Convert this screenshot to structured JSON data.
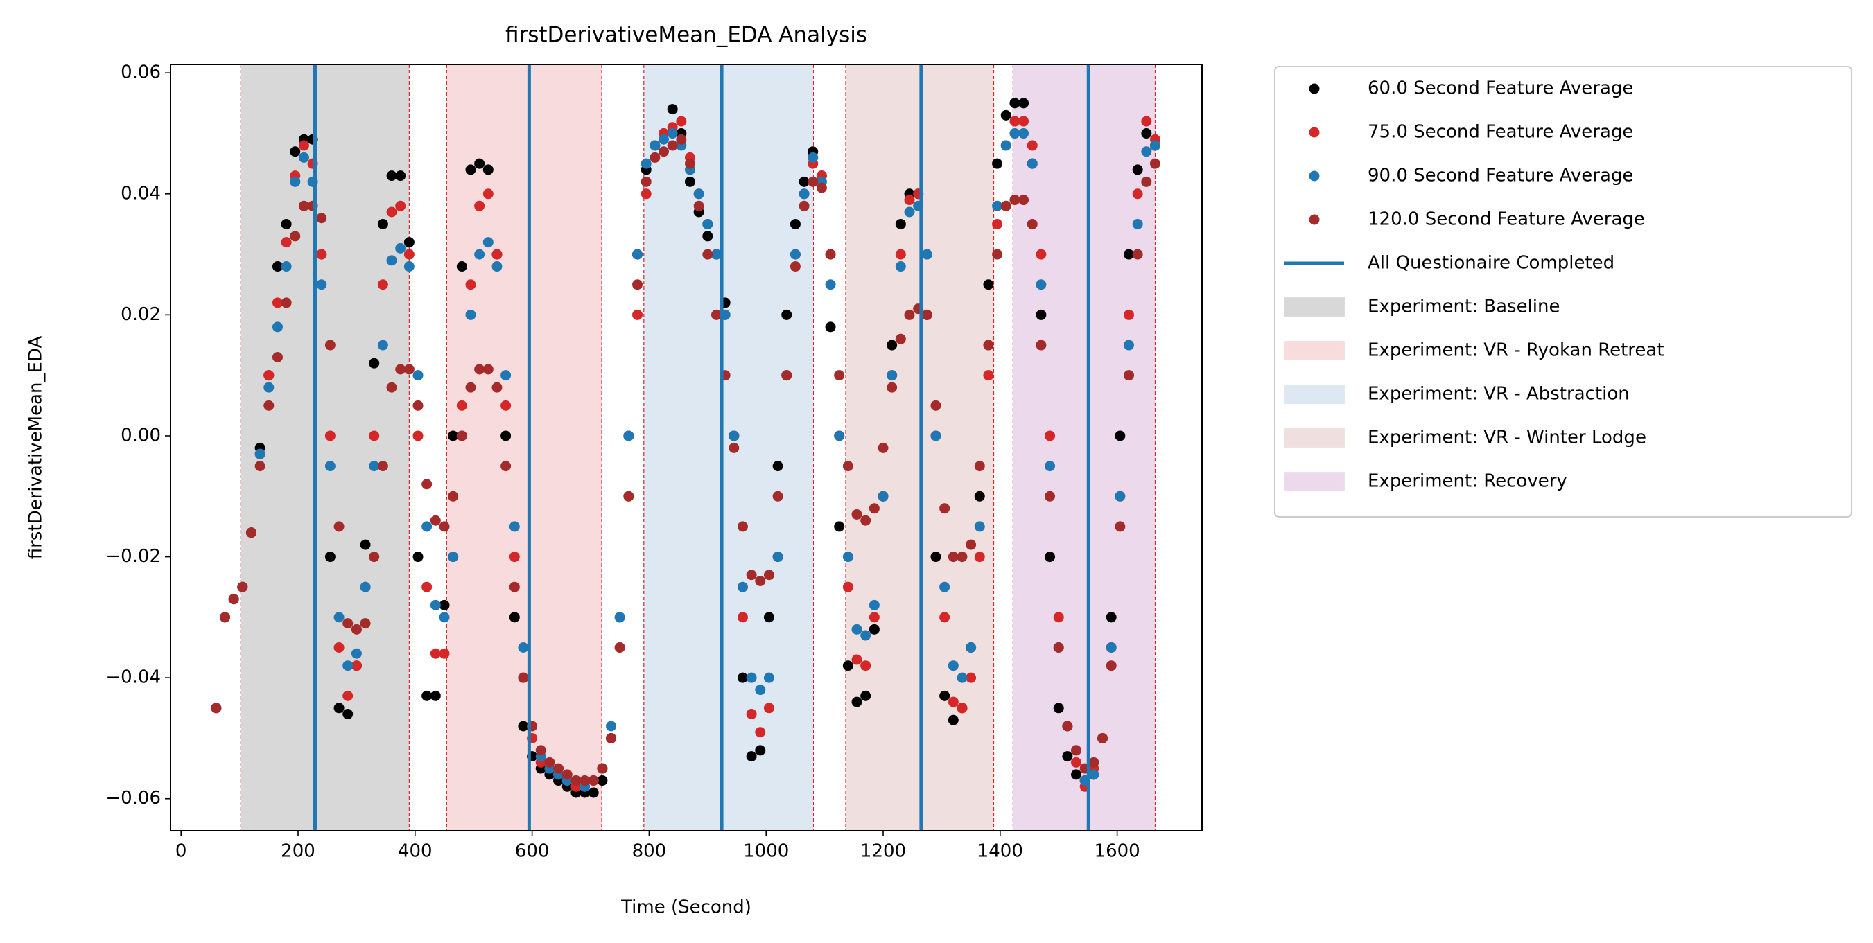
{
  "chart_data": {
    "type": "scatter",
    "title": "firstDerivativeMean_EDA Analysis",
    "x_label": "Time (Second)",
    "y_label": "firstDerivativeMean_EDA",
    "xlim": [
      -18,
      1745
    ],
    "ylim": [
      -0.0653,
      0.0614
    ],
    "xticks": [
      0,
      200,
      400,
      600,
      800,
      1000,
      1200,
      1400,
      1600
    ],
    "yticks": [
      {
        "value": -0.06,
        "label": "−0.06"
      },
      {
        "value": -0.04,
        "label": "−0.04"
      },
      {
        "value": -0.02,
        "label": "−0.02"
      },
      {
        "value": 0,
        "label": "0.00"
      },
      0.02,
      0.04,
      0.06
    ],
    "x": [
      60,
      75,
      90,
      105,
      120,
      135,
      150,
      165,
      180,
      195,
      210,
      225,
      240,
      255,
      270,
      285,
      300,
      315,
      330,
      345,
      360,
      375,
      390,
      405,
      420,
      435,
      450,
      465,
      480,
      495,
      510,
      525,
      540,
      555,
      570,
      585,
      600,
      615,
      630,
      645,
      660,
      675,
      690,
      705,
      720,
      735,
      750,
      765,
      780,
      795,
      810,
      825,
      840,
      855,
      870,
      885,
      900,
      915,
      930,
      945,
      960,
      975,
      990,
      1005,
      1020,
      1035,
      1050,
      1065,
      1080,
      1095,
      1110,
      1125,
      1140,
      1155,
      1170,
      1185,
      1200,
      1215,
      1230,
      1245,
      1260,
      1275,
      1290,
      1305,
      1320,
      1335,
      1350,
      1365,
      1380,
      1395,
      1410,
      1425,
      1440,
      1455,
      1470,
      1485,
      1500,
      1515,
      1530,
      1545,
      1560,
      1575,
      1590,
      1605,
      1620,
      1635,
      1650,
      1665
    ],
    "series": [
      {
        "name": "60.0 Second Feature Average",
        "color": "#000000",
        "values": [
          -0.045,
          -0.03,
          -0.027,
          -0.025,
          -0.016,
          -0.002,
          0.01,
          0.028,
          0.035,
          0.047,
          0.049,
          0.049,
          0.03,
          -0.02,
          -0.045,
          -0.046,
          -0.038,
          -0.018,
          0.012,
          0.035,
          0.043,
          0.043,
          0.032,
          -0.02,
          -0.043,
          -0.043,
          -0.028,
          0.0,
          0.028,
          0.044,
          0.045,
          0.044,
          0.03,
          0.0,
          -0.03,
          -0.048,
          -0.053,
          -0.055,
          -0.056,
          -0.057,
          -0.058,
          -0.059,
          -0.059,
          -0.059,
          -0.057,
          -0.05,
          -0.03,
          0.0,
          0.03,
          0.044,
          0.048,
          0.05,
          0.054,
          0.05,
          0.042,
          0.037,
          0.033,
          0.03,
          0.022,
          0.0,
          -0.04,
          -0.053,
          -0.052,
          -0.03,
          -0.005,
          0.02,
          0.035,
          0.042,
          0.047,
          0.043,
          0.018,
          -0.015,
          -0.038,
          -0.044,
          -0.043,
          -0.032,
          -0.01,
          0.015,
          0.035,
          0.04,
          0.04,
          0.02,
          -0.02,
          -0.043,
          -0.047,
          -0.045,
          -0.035,
          -0.01,
          0.025,
          0.045,
          0.053,
          0.055,
          0.055,
          0.045,
          0.02,
          -0.02,
          -0.045,
          -0.053,
          -0.056,
          -0.057,
          -0.056,
          -0.05,
          -0.03,
          0.0,
          0.03,
          0.044,
          0.05,
          0.048
        ]
      },
      {
        "name": "75.0 Second Feature Average",
        "color": "#d62728",
        "values": [
          -0.045,
          -0.03,
          -0.027,
          -0.025,
          -0.016,
          -0.003,
          0.01,
          0.022,
          0.032,
          0.043,
          0.048,
          0.045,
          0.03,
          0.0,
          -0.035,
          -0.043,
          -0.038,
          -0.025,
          0.0,
          0.025,
          0.037,
          0.038,
          0.03,
          0.0,
          -0.025,
          -0.036,
          -0.036,
          -0.02,
          0.005,
          0.025,
          0.038,
          0.04,
          0.03,
          0.005,
          -0.02,
          -0.04,
          -0.05,
          -0.054,
          -0.055,
          -0.056,
          -0.057,
          -0.058,
          -0.058,
          -0.057,
          -0.055,
          -0.05,
          -0.035,
          -0.01,
          0.02,
          0.04,
          0.048,
          0.05,
          0.051,
          0.052,
          0.046,
          0.04,
          0.035,
          0.03,
          0.02,
          0.0,
          -0.03,
          -0.046,
          -0.049,
          -0.045,
          -0.02,
          0.01,
          0.03,
          0.04,
          0.045,
          0.043,
          0.03,
          0.0,
          -0.025,
          -0.037,
          -0.038,
          -0.03,
          -0.01,
          0.01,
          0.03,
          0.039,
          0.04,
          0.03,
          0.0,
          -0.03,
          -0.044,
          -0.045,
          -0.04,
          -0.02,
          0.01,
          0.035,
          0.048,
          0.052,
          0.052,
          0.048,
          0.03,
          0.0,
          -0.03,
          -0.048,
          -0.054,
          -0.058,
          -0.055,
          -0.05,
          -0.035,
          -0.01,
          0.02,
          0.04,
          0.052,
          0.049
        ]
      },
      {
        "name": "90.0 Second Feature Average",
        "color": "#1f77b4",
        "values": [
          -0.045,
          -0.03,
          -0.027,
          -0.025,
          -0.016,
          -0.003,
          0.008,
          0.018,
          0.028,
          0.042,
          0.046,
          0.042,
          0.025,
          -0.005,
          -0.03,
          -0.038,
          -0.036,
          -0.025,
          -0.005,
          0.015,
          0.029,
          0.031,
          0.028,
          0.01,
          -0.015,
          -0.028,
          -0.03,
          -0.02,
          0.0,
          0.02,
          0.03,
          0.032,
          0.028,
          0.01,
          -0.015,
          -0.035,
          -0.048,
          -0.053,
          -0.055,
          -0.056,
          -0.057,
          -0.057,
          -0.058,
          -0.057,
          -0.055,
          -0.048,
          -0.03,
          0.0,
          0.03,
          0.045,
          0.048,
          0.049,
          0.05,
          0.048,
          0.044,
          0.04,
          0.035,
          0.03,
          0.02,
          0.0,
          -0.025,
          -0.04,
          -0.042,
          -0.04,
          -0.02,
          0.01,
          0.03,
          0.04,
          0.046,
          0.042,
          0.025,
          0.0,
          -0.02,
          -0.032,
          -0.033,
          -0.028,
          -0.01,
          0.01,
          0.028,
          0.037,
          0.038,
          0.03,
          0.0,
          -0.025,
          -0.038,
          -0.04,
          -0.035,
          -0.015,
          0.015,
          0.038,
          0.048,
          0.05,
          0.05,
          0.045,
          0.025,
          -0.005,
          -0.035,
          -0.048,
          -0.052,
          -0.057,
          -0.056,
          -0.05,
          -0.035,
          -0.01,
          0.015,
          0.035,
          0.047,
          0.048
        ]
      },
      {
        "name": "120.0 Second Feature Average",
        "color": "#a52a2a",
        "values": [
          -0.045,
          -0.03,
          -0.027,
          -0.025,
          -0.016,
          -0.005,
          0.005,
          0.013,
          0.022,
          0.033,
          0.038,
          0.038,
          0.036,
          0.015,
          -0.015,
          -0.031,
          -0.032,
          -0.031,
          -0.02,
          -0.005,
          0.008,
          0.011,
          0.011,
          0.005,
          -0.008,
          -0.014,
          -0.015,
          -0.01,
          0.0,
          0.008,
          0.011,
          0.011,
          0.008,
          -0.005,
          -0.025,
          -0.04,
          -0.048,
          -0.052,
          -0.054,
          -0.055,
          -0.056,
          -0.057,
          -0.057,
          -0.057,
          -0.055,
          -0.05,
          -0.035,
          -0.01,
          0.025,
          0.042,
          0.046,
          0.047,
          0.048,
          0.049,
          0.045,
          0.038,
          0.03,
          0.02,
          0.01,
          -0.002,
          -0.015,
          -0.023,
          -0.024,
          -0.023,
          -0.01,
          0.01,
          0.028,
          0.038,
          0.042,
          0.041,
          0.03,
          0.01,
          -0.005,
          -0.013,
          -0.014,
          -0.012,
          -0.002,
          0.008,
          0.016,
          0.02,
          0.021,
          0.02,
          0.005,
          -0.012,
          -0.02,
          -0.02,
          -0.018,
          -0.005,
          0.015,
          0.03,
          0.038,
          0.039,
          0.039,
          0.035,
          0.015,
          -0.01,
          -0.035,
          -0.048,
          -0.052,
          -0.055,
          -0.054,
          -0.05,
          -0.038,
          -0.015,
          0.01,
          0.03,
          0.042,
          0.045
        ]
      }
    ],
    "markers": {
      "name": "All Questionaire Completed",
      "color": "#1f77b4",
      "x": [
        229,
        595,
        924,
        1265,
        1551
      ]
    },
    "spans": [
      {
        "name": "Experiment: Baseline",
        "start": 102,
        "end": 390,
        "color": "#d8d8d8"
      },
      {
        "name": "Experiment: VR - Ryokan Retreat",
        "start": 454,
        "end": 719,
        "color": "#f8dcdd"
      },
      {
        "name": "Experiment: VR - Abstraction",
        "start": 791,
        "end": 1081,
        "color": "#dde8f3"
      },
      {
        "name": "Experiment: VR - Winter Lodge",
        "start": 1136,
        "end": 1389,
        "color": "#f0dfdf"
      },
      {
        "name": "Experiment: Recovery",
        "start": 1422,
        "end": 1665,
        "color": "#ecdaec"
      }
    ],
    "span_edge_color": "#d62728",
    "legend": "outside-right"
  }
}
